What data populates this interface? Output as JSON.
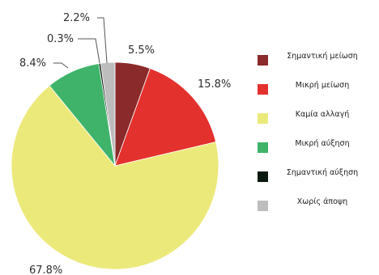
{
  "chart_data": {
    "type": "pie",
    "categories": [
      "Σημαντική μείωση",
      "Μικρή μείωση",
      "Καμία αλλαγή",
      "Μικρή αύξηση",
      "Σημαντική αύξηση",
      "Χωρίς άποψη"
    ],
    "values": [
      5.5,
      15.8,
      67.8,
      8.4,
      0.3,
      2.2
    ],
    "data_labels": [
      "5.5%",
      "15.8%",
      "67.8%",
      "8.4%",
      "0.3%",
      "2.2%"
    ],
    "colors": [
      "#8b2a2a",
      "#e3312e",
      "#ece97b",
      "#3fb36a",
      "#0b1a0e",
      "#bdbdbd"
    ],
    "start_angle_deg": 0,
    "direction": "clockwise",
    "legend_placement": "right"
  }
}
